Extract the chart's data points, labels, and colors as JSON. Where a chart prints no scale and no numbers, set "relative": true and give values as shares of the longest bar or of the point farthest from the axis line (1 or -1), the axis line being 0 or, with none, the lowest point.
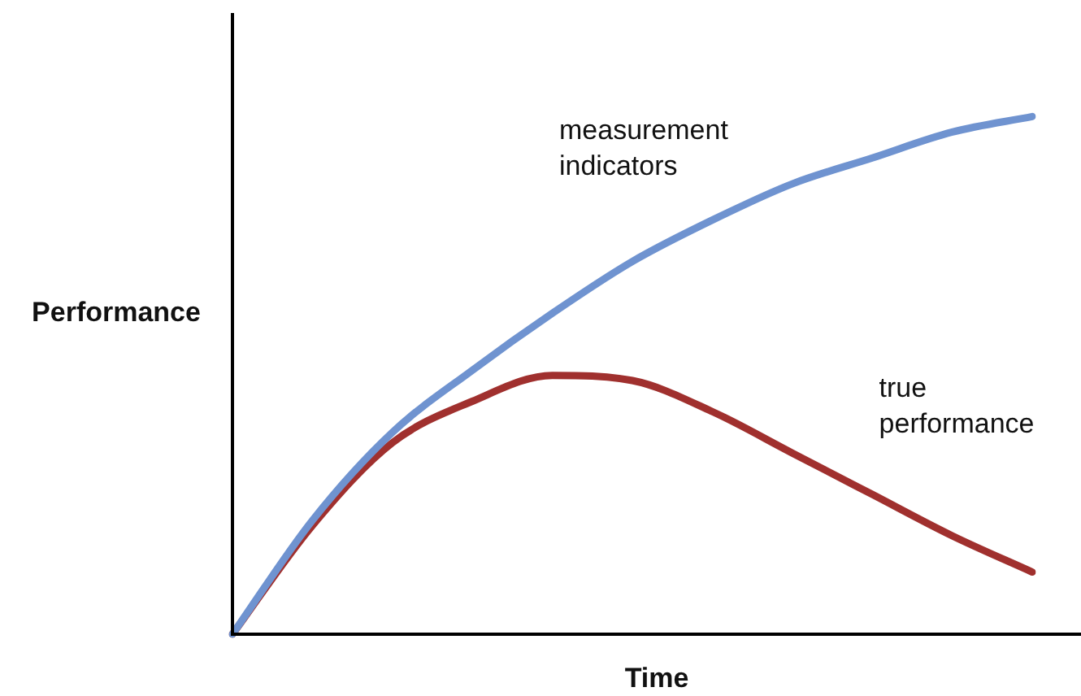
{
  "chart_data": {
    "type": "line",
    "relative": true,
    "xlabel": "Time",
    "ylabel": "Performance",
    "tick_labels": false,
    "legend": false,
    "categories": [
      null,
      null,
      null,
      null,
      null,
      null,
      null,
      null,
      null,
      null,
      null
    ],
    "series": [
      {
        "name": "measurement indicators",
        "color": "#6f93d0",
        "values": [
          0,
          0.22,
          0.39,
          0.51,
          0.62,
          0.72,
          0.8,
          0.87,
          0.92,
          0.97,
          1.0
        ]
      },
      {
        "name": "true performance",
        "color": "#a0302e",
        "values": [
          0,
          0.21,
          0.37,
          0.45,
          0.5,
          0.49,
          0.43,
          0.35,
          0.27,
          0.19,
          0.12
        ]
      }
    ]
  }
}
